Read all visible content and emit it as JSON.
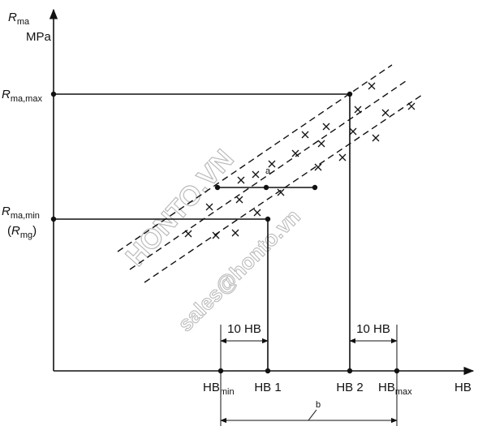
{
  "y_axis": {
    "symbol": {
      "main": "R",
      "sub": "ma"
    },
    "unit": "MPa"
  },
  "x_axis": {
    "label": "HB"
  },
  "y_labels": {
    "max": {
      "main": "R",
      "sub": "ma,max"
    },
    "min": {
      "main": "R",
      "sub": "ma,min"
    },
    "mg": {
      "open": "(",
      "main": "R",
      "sub": "mg",
      "close": ")"
    }
  },
  "x_labels": {
    "hb_min": {
      "main": "HB",
      "sub": "min"
    },
    "hb1": "HB 1",
    "hb2": "HB 2",
    "hb_max": {
      "main": "HB",
      "sub": "max"
    }
  },
  "dimensions": {
    "left": "10 HB",
    "right": "10 HB",
    "a": "a",
    "b": "b"
  },
  "watermark": {
    "brand": "HONTO.VN",
    "email": "sales@honto.vn"
  }
}
